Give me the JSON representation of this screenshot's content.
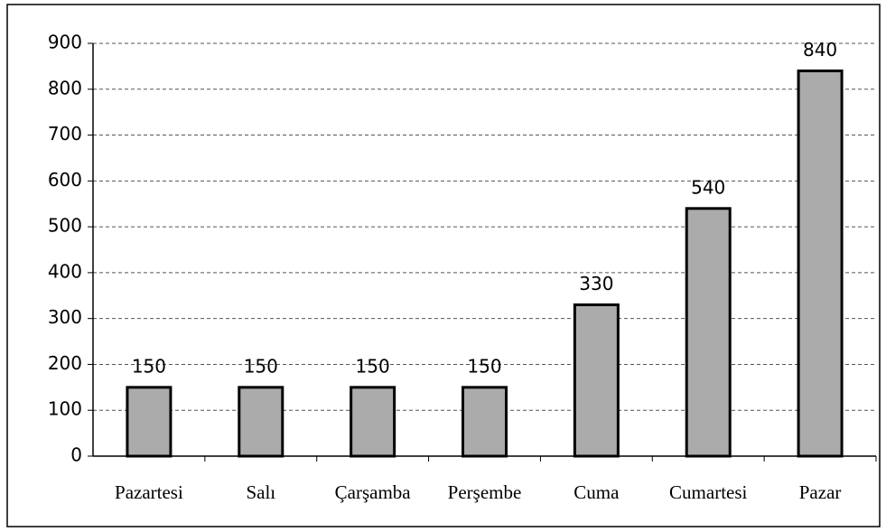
{
  "chart_data": {
    "type": "bar",
    "categories": [
      "Pazartesi",
      "Salı",
      "Çarşamba",
      "Perşembe",
      "Cuma",
      "Cumartesi",
      "Pazar"
    ],
    "values": [
      150,
      150,
      150,
      150,
      330,
      540,
      840
    ],
    "color": "#ababab",
    "ylim": [
      0,
      900
    ],
    "yticks": [
      0,
      100,
      200,
      300,
      400,
      500,
      600,
      700,
      800,
      900
    ],
    "grid": true
  }
}
